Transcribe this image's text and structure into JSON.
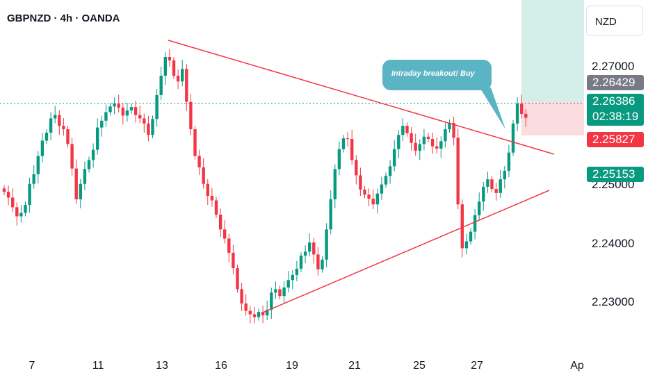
{
  "header": {
    "title": "GBPNZD · 4h · OANDA"
  },
  "currency_button": {
    "label": "NZD"
  },
  "annotation": {
    "text": "Intraday breakout! Buy"
  },
  "colors": {
    "up": "#089981",
    "down": "#f23645",
    "trendline": "#f23645",
    "callout": "#5ab4c3",
    "profit_zone": "#d4eee9",
    "loss_zone": "#fbdcdf"
  },
  "badges": {
    "target": "2.26429",
    "last_price": "2.26386",
    "countdown": "02:38:19",
    "stop": "2.25827",
    "green_level": "2.25153"
  },
  "chart_data": {
    "type": "candlestick",
    "title": "GBPNZD · 4h · OANDA",
    "y_axis_labels": [
      "2.27000",
      "2.25000",
      "2.24000",
      "2.23000"
    ],
    "x_axis_labels": [
      "7",
      "11",
      "13",
      "16",
      "19",
      "21",
      "25",
      "27",
      "Ap"
    ],
    "ylim": [
      2.2235,
      2.2845
    ],
    "last_price": 2.26386,
    "candle_closes": [
      2.2508,
      2.2498,
      2.2481,
      2.2465,
      2.2471,
      2.2485,
      2.2522,
      2.2539,
      2.2571,
      2.2598,
      2.2612,
      2.2637,
      2.2643,
      2.2624,
      2.2618,
      2.2592,
      2.2549,
      2.2495,
      2.2522,
      2.2548,
      2.2564,
      2.2582,
      2.2621,
      2.2633,
      2.2648,
      2.2658,
      2.2663,
      2.2656,
      2.2642,
      2.2651,
      2.2657,
      2.2643,
      2.2637,
      2.2628,
      2.2608,
      2.2636,
      2.2678,
      2.2712,
      2.2745,
      2.2739,
      2.2712,
      2.2702,
      2.2724,
      2.2666,
      2.2618,
      2.2571,
      2.2551,
      2.2522,
      2.2501,
      2.2493,
      2.2468,
      2.2442,
      2.2426,
      2.2401,
      2.2374,
      2.2337,
      2.2312,
      2.2299,
      2.2293,
      2.2288,
      2.2297,
      2.2291,
      2.2301,
      2.2331,
      2.2337,
      2.2325,
      2.234,
      2.2353,
      2.2362,
      2.2373,
      2.2396,
      2.2403,
      2.2419,
      2.2398,
      2.2372,
      2.2389,
      2.2442,
      2.2495,
      2.2548,
      2.2583,
      2.2602,
      2.2601,
      2.2564,
      2.2537,
      2.2512,
      2.2503,
      2.2496,
      2.2486,
      2.2505,
      2.2521,
      2.2536,
      2.2553,
      2.2583,
      2.2608,
      2.2624,
      2.2611,
      2.2594,
      2.258,
      2.2592,
      2.2605,
      2.2601,
      2.2588,
      2.2584,
      2.2597,
      2.2618,
      2.2629,
      2.2603,
      2.2486,
      2.2409,
      2.2421,
      2.2438,
      2.2467,
      2.2491,
      2.2517,
      2.253,
      2.2513,
      2.2506,
      2.253,
      2.2545,
      2.2577,
      2.2628,
      2.2663,
      2.2645,
      2.2638
    ],
    "trendlines": [
      {
        "name": "descending resistance",
        "from": [
          13.3,
          2.2765
        ],
        "to": [
          29.2,
          2.258
        ]
      },
      {
        "name": "ascending support",
        "from": [
          17.9,
          2.2285
        ],
        "to": [
          29.0,
          2.2477
        ]
      }
    ]
  }
}
